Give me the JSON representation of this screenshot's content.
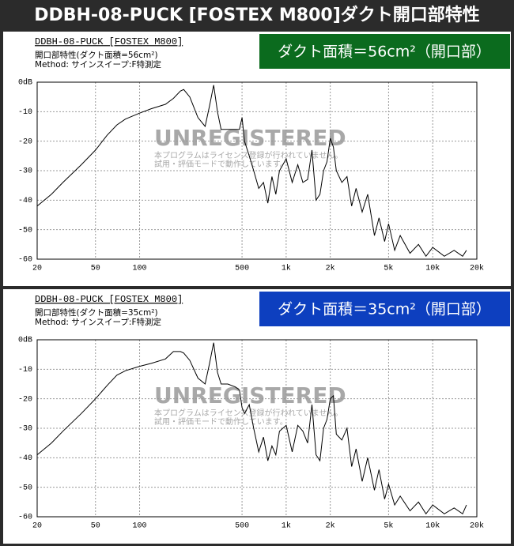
{
  "page_title": "DDBH-08-PUCK [FOSTEX M800]ダクト開口部特性",
  "chart_data": [
    {
      "type": "line",
      "title": "DDBH-08-PUCK [FOSTEX M800]",
      "subtitle": "開口部特性(ダクト面積=56cm²)",
      "method": "Method: サインスイープ:F特測定",
      "annotation": "ダクト面積＝56cm²（開口部）",
      "annotation_color": "#0b6b1e",
      "watermark": [
        "UNREGISTERED",
        "本プログラムはライセンス登録が行われていません。",
        "試用・評価モードで動作しています。"
      ],
      "log_x": true,
      "grid": true,
      "color": "#000000",
      "xlim": [
        20,
        20000
      ],
      "ylim": [
        -60,
        0
      ],
      "xticks": [
        20,
        50,
        100,
        500,
        {
          "value": 1000,
          "label": "1k"
        },
        {
          "value": 2000,
          "label": "2k"
        },
        {
          "value": 5000,
          "label": "5k"
        },
        {
          "value": 10000,
          "label": "10k"
        },
        {
          "value": 20000,
          "label": "20k"
        }
      ],
      "yticks": [
        {
          "value": 0,
          "label": "0dB"
        },
        -10,
        -20,
        -30,
        -40,
        -50,
        -60
      ],
      "x": [
        20,
        25,
        30,
        40,
        50,
        60,
        70,
        80,
        100,
        120,
        150,
        170,
        190,
        200,
        220,
        250,
        280,
        300,
        320,
        340,
        360,
        400,
        450,
        480,
        500,
        520,
        560,
        600,
        650,
        700,
        750,
        800,
        850,
        900,
        1000,
        1100,
        1200,
        1300,
        1400,
        1500,
        1600,
        1700,
        1800,
        1900,
        2000,
        2100,
        2200,
        2400,
        2600,
        2800,
        3000,
        3300,
        3600,
        4000,
        4300,
        4700,
        5000,
        5500,
        6000,
        7000,
        8000,
        9000,
        10000,
        12000,
        14000,
        16000,
        17000
      ],
      "values": [
        -42,
        -38,
        -34,
        -28,
        -23,
        -18,
        -14.5,
        -12.5,
        -10.5,
        -9,
        -7.5,
        -5.5,
        -3,
        -2.5,
        -5,
        -12,
        -15,
        -8,
        -1,
        -10,
        -16,
        -16,
        -16,
        -16,
        -12,
        -20,
        -25,
        -30,
        -36,
        -34,
        -41,
        -32,
        -38,
        -30,
        -26,
        -34,
        -28,
        -34,
        -33,
        -23,
        -40,
        -38,
        -30,
        -27,
        -19,
        -22,
        -30,
        -34,
        -32,
        -42,
        -36,
        -44,
        -38,
        -52,
        -46,
        -54,
        -48,
        -57,
        -52,
        -58,
        -55,
        -59,
        -56,
        -59,
        -57,
        -59,
        -57
      ]
    },
    {
      "type": "line",
      "title": "DDBH-08-PUCK [FOSTEX M800]",
      "subtitle": "開口部特性(ダクト面積=35cm²)",
      "method": "Method: サインスイープ:F特測定",
      "annotation": "ダクト面積＝35cm²（開口部）",
      "annotation_color": "#0d3fbf",
      "watermark": [
        "UNREGISTERED",
        "本プログラムはライセンス登録が行われていません。",
        "試用・評価モードで動作しています。"
      ],
      "log_x": true,
      "grid": true,
      "color": "#000000",
      "xlim": [
        20,
        20000
      ],
      "ylim": [
        -60,
        0
      ],
      "xticks": [
        20,
        50,
        100,
        500,
        {
          "value": 1000,
          "label": "1k"
        },
        {
          "value": 2000,
          "label": "2k"
        },
        {
          "value": 5000,
          "label": "5k"
        },
        {
          "value": 10000,
          "label": "10k"
        },
        {
          "value": 20000,
          "label": "20k"
        }
      ],
      "yticks": [
        {
          "value": 0,
          "label": "0dB"
        },
        -10,
        -20,
        -30,
        -40,
        -50,
        -60
      ],
      "x": [
        20,
        25,
        30,
        40,
        50,
        60,
        70,
        80,
        100,
        120,
        150,
        170,
        190,
        200,
        220,
        250,
        280,
        300,
        320,
        340,
        360,
        400,
        450,
        480,
        500,
        520,
        560,
        600,
        650,
        700,
        750,
        800,
        850,
        900,
        1000,
        1100,
        1200,
        1300,
        1400,
        1500,
        1600,
        1700,
        1800,
        1900,
        2000,
        2100,
        2200,
        2400,
        2600,
        2800,
        3000,
        3300,
        3600,
        4000,
        4300,
        4700,
        5000,
        5500,
        6000,
        7000,
        8000,
        9000,
        10000,
        12000,
        14000,
        16000,
        17000
      ],
      "values": [
        -39,
        -35,
        -31,
        -25,
        -20,
        -15.5,
        -12,
        -10.5,
        -9,
        -8,
        -6.5,
        -4,
        -4,
        -4.5,
        -7,
        -13,
        -15,
        -8,
        -1,
        -11,
        -15,
        -15,
        -16,
        -17,
        -23,
        -25,
        -22,
        -30,
        -38,
        -33,
        -41,
        -36,
        -39,
        -31,
        -29,
        -38,
        -29,
        -31,
        -35,
        -22,
        -39,
        -41,
        -30,
        -27,
        -20,
        -19,
        -32,
        -34,
        -30,
        -43,
        -37,
        -48,
        -40,
        -51,
        -44,
        -54,
        -49,
        -56,
        -53,
        -58,
        -55,
        -59,
        -56,
        -59,
        -57,
        -59,
        -56
      ]
    }
  ]
}
